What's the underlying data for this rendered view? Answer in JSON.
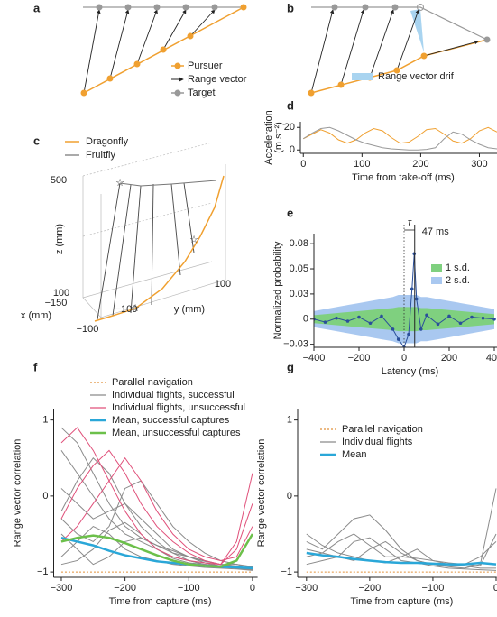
{
  "diagrams": {
    "a": {
      "label": "a",
      "legend": [
        "Pursuer",
        "Range vector",
        "Target"
      ]
    },
    "b": {
      "label": "b",
      "legend": [
        "Range vector drif"
      ]
    },
    "c": {
      "label": "c",
      "legend": [
        "Dragonfly",
        "Fruitfly"
      ],
      "z_label": "z (mm)",
      "y_label": "y (mm)",
      "x_label": "x (mm)",
      "ticks": [
        "500",
        "100",
        "−150",
        "100",
        "−100",
        "−100"
      ]
    }
  },
  "chart_data": [
    {
      "type": "line",
      "panel": "d",
      "xlabel": "Time from take-off (ms)",
      "ylabel": [
        "Acceleration",
        "(m s⁻²)"
      ],
      "xlim": [
        -5,
        330
      ],
      "ylim": [
        -3,
        25
      ],
      "xticks": [
        0,
        100,
        200,
        300
      ],
      "yticks": [
        0,
        20
      ],
      "x": [
        0,
        15,
        30,
        45,
        60,
        75,
        90,
        105,
        120,
        135,
        150,
        165,
        180,
        195,
        210,
        225,
        240,
        255,
        270,
        285,
        300,
        315,
        330
      ],
      "series": [
        {
          "color": "#f0a030",
          "values": [
            10,
            14,
            18,
            15,
            9,
            6,
            9,
            15,
            19,
            17,
            11,
            6,
            7,
            12,
            18,
            19,
            14,
            8,
            6,
            10,
            17,
            20,
            16
          ]
        },
        {
          "color": "#999999",
          "values": [
            10,
            15,
            19,
            20,
            17,
            13,
            9,
            6,
            4,
            2,
            1,
            0.5,
            0,
            0,
            0.5,
            2,
            10,
            16,
            14,
            9,
            5,
            2,
            1
          ]
        }
      ]
    },
    {
      "type": "line",
      "panel": "e",
      "xlabel": "Latency (ms)",
      "ylabel": [
        "Normalized probability"
      ],
      "xlim": [
        -400,
        412
      ],
      "ylim": [
        -0.028,
        0.085
      ],
      "xticks": [
        {
          "value": -400,
          "label": "−400"
        },
        {
          "value": -200,
          "label": "−200"
        },
        0,
        200,
        400
      ],
      "yticks": [
        {
          "value": 0.075,
          "label": "0.08"
        },
        0.05,
        {
          "value": 0.025,
          "label": "0.03"
        },
        0,
        {
          "value": -0.025,
          "label": "−0.03"
        }
      ],
      "annotations": [
        "τ",
        "47 ms"
      ],
      "marker_x": 47,
      "x": [
        -400,
        -350,
        -300,
        -250,
        -200,
        -150,
        -100,
        -50,
        -25,
        0,
        20,
        35,
        45,
        55,
        75,
        100,
        150,
        200,
        250,
        300,
        350,
        400
      ],
      "bands": [
        {
          "name": "2 s.d.",
          "color": "#a9c8f0",
          "values": [
            0.008,
            0.01,
            0.012,
            0.014,
            0.016,
            0.018,
            0.02,
            0.022,
            0.024,
            0.024,
            0.024,
            0.024,
            0.024,
            0.024,
            0.022,
            0.022,
            0.02,
            0.018,
            0.016,
            0.014,
            0.012,
            0.01
          ]
        },
        {
          "name": "1 s.d.",
          "color": "#7fd07f",
          "values": [
            0.004,
            0.005,
            0.006,
            0.007,
            0.008,
            0.009,
            0.01,
            0.011,
            0.012,
            0.012,
            0.012,
            0.012,
            0.012,
            0.012,
            0.011,
            0.011,
            0.01,
            0.009,
            0.008,
            0.007,
            0.006,
            0.005
          ]
        }
      ],
      "series": [
        {
          "color": "#2a4f9a",
          "values": [
            0,
            -0.003,
            0.001,
            -0.002,
            0.002,
            -0.004,
            0.003,
            -0.01,
            -0.02,
            -0.028,
            -0.015,
            0.03,
            0.065,
            0.02,
            -0.01,
            0.004,
            -0.005,
            0.003,
            -0.004,
            0.002,
            0.001,
            0
          ]
        }
      ]
    },
    {
      "type": "line",
      "panel": "f",
      "xlabel": "Time from capture (ms)",
      "ylabel": [
        "Range vector correlation"
      ],
      "xlim": [
        -312,
        8
      ],
      "ylim": [
        -1.07,
        1.15
      ],
      "xticks": [
        {
          "value": -300,
          "label": "−300"
        },
        {
          "value": -200,
          "label": "−200"
        },
        {
          "value": -100,
          "label": "−100"
        },
        0
      ],
      "yticks": [
        1,
        0,
        {
          "value": -1,
          "label": "−1"
        }
      ],
      "x": [
        -300,
        -275,
        -250,
        -225,
        -200,
        -175,
        -150,
        -125,
        -100,
        -75,
        -50,
        -25,
        0
      ],
      "series": [
        {
          "name": "Parallel navigation",
          "color": "#e0903a",
          "dash": true,
          "values": [
            -1,
            -1,
            -1,
            -1,
            -1,
            -1,
            -1,
            -1,
            -1,
            -1,
            -1,
            -1,
            -1
          ]
        },
        {
          "name": "Individual flights, successful",
          "color": "#8a8a8a",
          "lines": [
            [
              0.6,
              0.3,
              0,
              -0.3,
              -0.5,
              -0.6,
              -0.7,
              -0.8,
              -0.85,
              -0.9,
              -0.92,
              -0.95,
              -0.97
            ],
            [
              -0.2,
              0.2,
              0.5,
              0.3,
              -0.1,
              -0.4,
              -0.6,
              -0.75,
              -0.85,
              -0.9,
              -0.92,
              -0.9,
              -0.95
            ],
            [
              -0.8,
              -0.6,
              -0.4,
              -0.5,
              -0.7,
              -0.8,
              -0.85,
              -0.9,
              -0.92,
              -0.94,
              -0.95,
              -0.96,
              -0.98
            ],
            [
              0.1,
              -0.1,
              -0.3,
              -0.2,
              -0.1,
              -0.3,
              -0.5,
              -0.7,
              -0.8,
              -0.85,
              -0.9,
              -0.93,
              -0.96
            ],
            [
              -0.5,
              -0.7,
              -0.9,
              -0.8,
              -0.6,
              -0.55,
              -0.65,
              -0.75,
              -0.8,
              -0.88,
              -0.92,
              -0.95,
              -0.96
            ],
            [
              0.9,
              0.7,
              0.3,
              -0.1,
              -0.4,
              -0.55,
              -0.65,
              -0.72,
              -0.8,
              -0.86,
              -0.9,
              -0.9,
              -0.93
            ],
            [
              -0.9,
              -0.85,
              -0.7,
              -0.45,
              -0.35,
              -0.5,
              -0.7,
              -0.82,
              -0.88,
              -0.9,
              -0.93,
              -0.95,
              -0.97
            ],
            [
              -0.3,
              -0.5,
              -0.6,
              -0.4,
              0.1,
              0.2,
              -0.1,
              -0.4,
              -0.6,
              -0.75,
              -0.85,
              -0.9,
              -0.94
            ]
          ]
        },
        {
          "name": "Individual flights, unsuccessful",
          "color": "#e0507a",
          "lines": [
            [
              0.7,
              0.9,
              0.6,
              0.2,
              -0.2,
              -0.5,
              -0.7,
              -0.8,
              -0.85,
              -0.88,
              -0.9,
              -0.6,
              0.3
            ],
            [
              -0.3,
              0.1,
              0.4,
              0.6,
              0.3,
              -0.1,
              -0.4,
              -0.6,
              -0.75,
              -0.85,
              -0.9,
              -0.7,
              -0.1
            ],
            [
              -0.6,
              -0.4,
              -0.1,
              0.2,
              0.5,
              0.2,
              -0.2,
              -0.5,
              -0.7,
              -0.8,
              -0.85,
              -0.8,
              -0.4
            ]
          ]
        },
        {
          "name": "Mean, successful captures",
          "color": "#2aa7d8",
          "width": 2.5,
          "values": [
            -0.55,
            -0.6,
            -0.65,
            -0.72,
            -0.78,
            -0.82,
            -0.86,
            -0.88,
            -0.9,
            -0.92,
            -0.93,
            -0.94,
            -0.95
          ]
        },
        {
          "name": "Mean, unsuccessful captures",
          "color": "#6cc04a",
          "width": 2.5,
          "values": [
            -0.6,
            -0.55,
            -0.52,
            -0.55,
            -0.62,
            -0.7,
            -0.78,
            -0.85,
            -0.9,
            -0.92,
            -0.93,
            -0.85,
            -0.5
          ]
        }
      ]
    },
    {
      "type": "line",
      "panel": "g",
      "xlabel": "Time from capture (ms)",
      "ylabel": [
        "Range vector correlation"
      ],
      "xlim": [
        -314,
        1
      ],
      "ylim": [
        -1.07,
        1.15
      ],
      "xticks": [
        {
          "value": -300,
          "label": "−300"
        },
        {
          "value": -200,
          "label": "−200"
        },
        {
          "value": -100,
          "label": "−100"
        },
        0
      ],
      "yticks": [
        1,
        0,
        {
          "value": -1,
          "label": "−1"
        }
      ],
      "x": [
        -300,
        -275,
        -250,
        -225,
        -200,
        -175,
        -150,
        -125,
        -100,
        -75,
        -50,
        -25,
        0
      ],
      "series": [
        {
          "name": "Parallel navigation",
          "color": "#e0903a",
          "dash": true,
          "values": [
            -1,
            -1,
            -1,
            -1,
            -1,
            -1,
            -1,
            -1,
            -1,
            -1,
            -1,
            -1,
            -1
          ]
        },
        {
          "name": "Individual flights",
          "color": "#8a8a8a",
          "lines": [
            [
              -0.6,
              -0.7,
              -0.5,
              -0.3,
              -0.25,
              -0.45,
              -0.7,
              -0.85,
              -0.9,
              -0.92,
              -0.9,
              -0.8,
              -0.6
            ],
            [
              -0.8,
              -0.75,
              -0.8,
              -0.85,
              -0.7,
              -0.6,
              -0.75,
              -0.85,
              -0.9,
              -0.93,
              -0.95,
              -0.9,
              0.1
            ],
            [
              -0.5,
              -0.65,
              -0.75,
              -0.8,
              -0.85,
              -0.88,
              -0.8,
              -0.7,
              -0.85,
              -0.9,
              -0.92,
              -0.95,
              -0.95
            ],
            [
              -0.9,
              -0.85,
              -0.8,
              -0.6,
              -0.55,
              -0.7,
              -0.85,
              -0.88,
              -0.92,
              -0.95,
              -0.96,
              -0.97,
              -0.98
            ],
            [
              -0.7,
              -0.75,
              -0.6,
              -0.5,
              -0.65,
              -0.8,
              -0.8,
              -0.82,
              -0.85,
              -0.88,
              -0.9,
              -0.92,
              -0.5
            ]
          ]
        },
        {
          "name": "Mean",
          "color": "#2aa7d8",
          "width": 2.5,
          "values": [
            -0.75,
            -0.78,
            -0.8,
            -0.83,
            -0.85,
            -0.87,
            -0.88,
            -0.88,
            -0.89,
            -0.9,
            -0.9,
            -0.88,
            -0.9
          ]
        }
      ]
    }
  ]
}
